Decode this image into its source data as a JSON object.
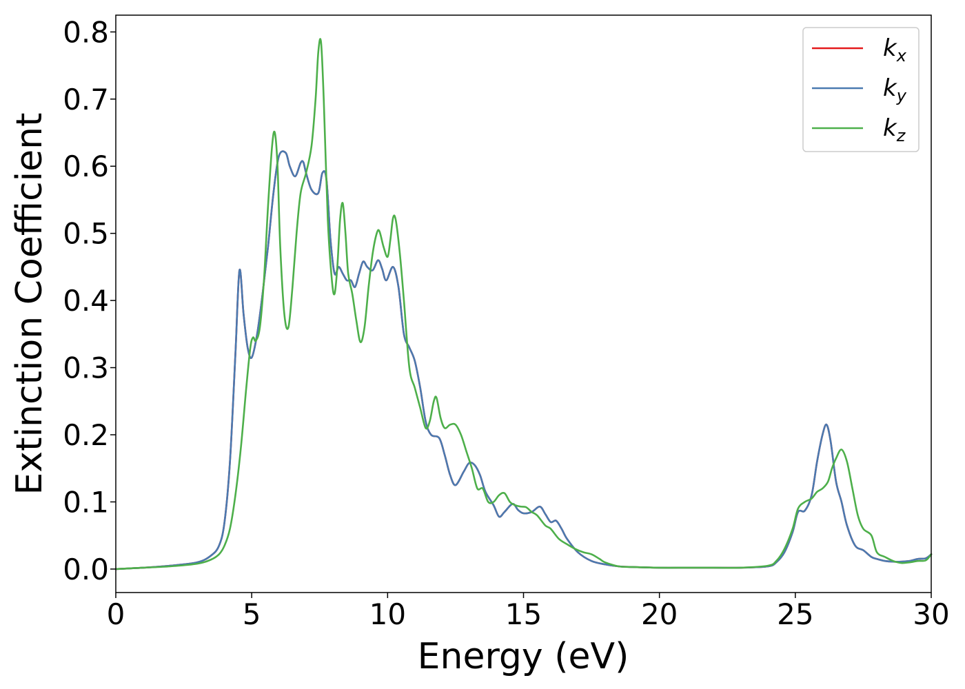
{
  "chart_data": {
    "type": "line",
    "title": "",
    "xlabel": "Energy (eV)",
    "ylabel": "Extinction Coefficient",
    "xlim": [
      0,
      30
    ],
    "ylim": [
      -0.035,
      0.825
    ],
    "x_ticks": [
      0,
      5,
      10,
      15,
      20,
      25,
      30
    ],
    "y_ticks": [
      0.0,
      0.1,
      0.2,
      0.3,
      0.4,
      0.5,
      0.6,
      0.7,
      0.8
    ],
    "grid": false,
    "legend_position": "top-right",
    "series": [
      {
        "name": "k",
        "subscript": "x",
        "color": "#e41a1c",
        "x": [
          0,
          1,
          2,
          3,
          3.5,
          3.8,
          4.0,
          4.2,
          4.4,
          4.55,
          4.7,
          4.85,
          5.0,
          5.2,
          5.4,
          5.6,
          5.8,
          6.0,
          6.25,
          6.4,
          6.6,
          6.8,
          6.9,
          7.0,
          7.2,
          7.45,
          7.6,
          7.75,
          7.9,
          8.05,
          8.2,
          8.35,
          8.5,
          8.65,
          8.8,
          8.95,
          9.1,
          9.25,
          9.45,
          9.65,
          9.8,
          9.95,
          10.2,
          10.4,
          10.6,
          10.8,
          11.0,
          11.2,
          11.4,
          11.6,
          11.9,
          12.1,
          12.3,
          12.5,
          12.8,
          13.0,
          13.2,
          13.4,
          13.6,
          13.9,
          14.1,
          14.3,
          14.6,
          14.8,
          15.0,
          15.3,
          15.6,
          15.8,
          16.0,
          16.2,
          16.4,
          16.6,
          17.0,
          17.5,
          18.0,
          18.5,
          19,
          20,
          21,
          22,
          23,
          24,
          24.3,
          24.6,
          24.9,
          25.1,
          25.35,
          25.6,
          25.8,
          26.0,
          26.15,
          26.3,
          26.5,
          26.7,
          26.9,
          27.2,
          27.5,
          27.8,
          28.0,
          28.3,
          28.6,
          28.9,
          29.2,
          29.5,
          29.8,
          30.0
        ],
        "y": [
          0.0,
          0.002,
          0.005,
          0.01,
          0.02,
          0.035,
          0.07,
          0.16,
          0.32,
          0.445,
          0.38,
          0.33,
          0.315,
          0.35,
          0.41,
          0.48,
          0.56,
          0.615,
          0.62,
          0.6,
          0.585,
          0.605,
          0.606,
          0.59,
          0.565,
          0.56,
          0.59,
          0.58,
          0.49,
          0.44,
          0.45,
          0.44,
          0.43,
          0.43,
          0.42,
          0.44,
          0.458,
          0.45,
          0.445,
          0.46,
          0.447,
          0.43,
          0.45,
          0.42,
          0.35,
          0.33,
          0.31,
          0.27,
          0.22,
          0.2,
          0.195,
          0.17,
          0.14,
          0.125,
          0.145,
          0.158,
          0.155,
          0.14,
          0.115,
          0.095,
          0.078,
          0.085,
          0.097,
          0.088,
          0.083,
          0.085,
          0.093,
          0.082,
          0.07,
          0.072,
          0.06,
          0.045,
          0.025,
          0.012,
          0.007,
          0.004,
          0.003,
          0.002,
          0.002,
          0.002,
          0.002,
          0.004,
          0.01,
          0.025,
          0.055,
          0.085,
          0.087,
          0.11,
          0.16,
          0.2,
          0.215,
          0.19,
          0.13,
          0.1,
          0.065,
          0.035,
          0.028,
          0.018,
          0.015,
          0.012,
          0.011,
          0.011,
          0.012,
          0.015,
          0.016,
          0.022
        ]
      },
      {
        "name": "k",
        "subscript": "y",
        "color": "#4a7ab0",
        "x": [
          0,
          1,
          2,
          3,
          3.5,
          3.8,
          4.0,
          4.2,
          4.4,
          4.55,
          4.7,
          4.85,
          5.0,
          5.2,
          5.4,
          5.6,
          5.8,
          6.0,
          6.25,
          6.4,
          6.6,
          6.8,
          6.9,
          7.0,
          7.2,
          7.45,
          7.6,
          7.75,
          7.9,
          8.05,
          8.2,
          8.35,
          8.5,
          8.65,
          8.8,
          8.95,
          9.1,
          9.25,
          9.45,
          9.65,
          9.8,
          9.95,
          10.2,
          10.4,
          10.6,
          10.8,
          11.0,
          11.2,
          11.4,
          11.6,
          11.9,
          12.1,
          12.3,
          12.5,
          12.8,
          13.0,
          13.2,
          13.4,
          13.6,
          13.9,
          14.1,
          14.3,
          14.6,
          14.8,
          15.0,
          15.3,
          15.6,
          15.8,
          16.0,
          16.2,
          16.4,
          16.6,
          17.0,
          17.5,
          18.0,
          18.5,
          19,
          20,
          21,
          22,
          23,
          24,
          24.3,
          24.6,
          24.9,
          25.1,
          25.35,
          25.6,
          25.8,
          26.0,
          26.15,
          26.3,
          26.5,
          26.7,
          26.9,
          27.2,
          27.5,
          27.8,
          28.0,
          28.3,
          28.6,
          28.9,
          29.2,
          29.5,
          29.8,
          30.0
        ],
        "y": [
          0.0,
          0.002,
          0.005,
          0.01,
          0.02,
          0.035,
          0.07,
          0.16,
          0.32,
          0.445,
          0.38,
          0.33,
          0.315,
          0.35,
          0.41,
          0.48,
          0.56,
          0.615,
          0.62,
          0.6,
          0.585,
          0.605,
          0.606,
          0.59,
          0.565,
          0.56,
          0.59,
          0.58,
          0.49,
          0.44,
          0.45,
          0.44,
          0.43,
          0.43,
          0.42,
          0.44,
          0.458,
          0.45,
          0.445,
          0.46,
          0.447,
          0.43,
          0.45,
          0.42,
          0.35,
          0.33,
          0.31,
          0.27,
          0.22,
          0.2,
          0.195,
          0.17,
          0.14,
          0.125,
          0.145,
          0.158,
          0.155,
          0.14,
          0.115,
          0.095,
          0.078,
          0.085,
          0.097,
          0.088,
          0.083,
          0.085,
          0.093,
          0.082,
          0.07,
          0.072,
          0.06,
          0.045,
          0.025,
          0.012,
          0.007,
          0.004,
          0.003,
          0.002,
          0.002,
          0.002,
          0.002,
          0.004,
          0.01,
          0.025,
          0.055,
          0.085,
          0.087,
          0.11,
          0.16,
          0.2,
          0.215,
          0.19,
          0.13,
          0.1,
          0.065,
          0.035,
          0.028,
          0.018,
          0.015,
          0.012,
          0.011,
          0.011,
          0.012,
          0.015,
          0.016,
          0.022
        ]
      },
      {
        "name": "k",
        "subscript": "z",
        "color": "#4daf4a",
        "x": [
          0,
          1,
          2,
          3,
          3.5,
          3.8,
          4.0,
          4.2,
          4.4,
          4.6,
          4.8,
          4.95,
          5.05,
          5.15,
          5.3,
          5.45,
          5.6,
          5.75,
          5.85,
          5.95,
          6.05,
          6.2,
          6.35,
          6.5,
          6.65,
          6.8,
          7.0,
          7.2,
          7.35,
          7.45,
          7.55,
          7.65,
          7.8,
          7.95,
          8.05,
          8.15,
          8.25,
          8.35,
          8.45,
          8.55,
          8.7,
          8.85,
          9.0,
          9.15,
          9.3,
          9.45,
          9.6,
          9.7,
          9.85,
          10.0,
          10.1,
          10.2,
          10.3,
          10.45,
          10.6,
          10.8,
          11.0,
          11.2,
          11.4,
          11.55,
          11.7,
          11.8,
          11.95,
          12.1,
          12.3,
          12.5,
          12.7,
          12.9,
          13.1,
          13.3,
          13.5,
          13.7,
          13.9,
          14.1,
          14.3,
          14.5,
          14.7,
          14.9,
          15.1,
          15.3,
          15.5,
          15.8,
          16.0,
          16.3,
          16.6,
          16.9,
          17.2,
          17.5,
          17.8,
          18.0,
          18.5,
          19,
          20,
          21,
          22,
          23,
          24,
          24.3,
          24.6,
          24.9,
          25.1,
          25.35,
          25.6,
          25.8,
          26.0,
          26.2,
          26.35,
          26.5,
          26.7,
          26.9,
          27.1,
          27.3,
          27.5,
          27.8,
          28.0,
          28.3,
          28.6,
          28.9,
          29.2,
          29.5,
          29.8,
          30.0
        ],
        "y": [
          0.0,
          0.002,
          0.004,
          0.008,
          0.014,
          0.022,
          0.035,
          0.06,
          0.11,
          0.18,
          0.27,
          0.33,
          0.345,
          0.34,
          0.36,
          0.43,
          0.54,
          0.63,
          0.65,
          0.6,
          0.48,
          0.38,
          0.36,
          0.42,
          0.5,
          0.56,
          0.59,
          0.63,
          0.7,
          0.77,
          0.785,
          0.7,
          0.52,
          0.43,
          0.41,
          0.45,
          0.52,
          0.545,
          0.5,
          0.44,
          0.41,
          0.37,
          0.338,
          0.36,
          0.42,
          0.47,
          0.5,
          0.503,
          0.48,
          0.465,
          0.49,
          0.523,
          0.52,
          0.47,
          0.4,
          0.3,
          0.27,
          0.24,
          0.21,
          0.22,
          0.25,
          0.255,
          0.225,
          0.21,
          0.215,
          0.215,
          0.2,
          0.175,
          0.15,
          0.12,
          0.12,
          0.1,
          0.1,
          0.11,
          0.113,
          0.1,
          0.095,
          0.093,
          0.092,
          0.085,
          0.08,
          0.065,
          0.06,
          0.045,
          0.037,
          0.03,
          0.025,
          0.022,
          0.015,
          0.01,
          0.004,
          0.003,
          0.002,
          0.002,
          0.002,
          0.002,
          0.005,
          0.012,
          0.03,
          0.06,
          0.09,
          0.1,
          0.105,
          0.115,
          0.12,
          0.13,
          0.15,
          0.165,
          0.178,
          0.16,
          0.12,
          0.08,
          0.06,
          0.05,
          0.025,
          0.018,
          0.012,
          0.009,
          0.01,
          0.012,
          0.013,
          0.022
        ]
      }
    ]
  }
}
